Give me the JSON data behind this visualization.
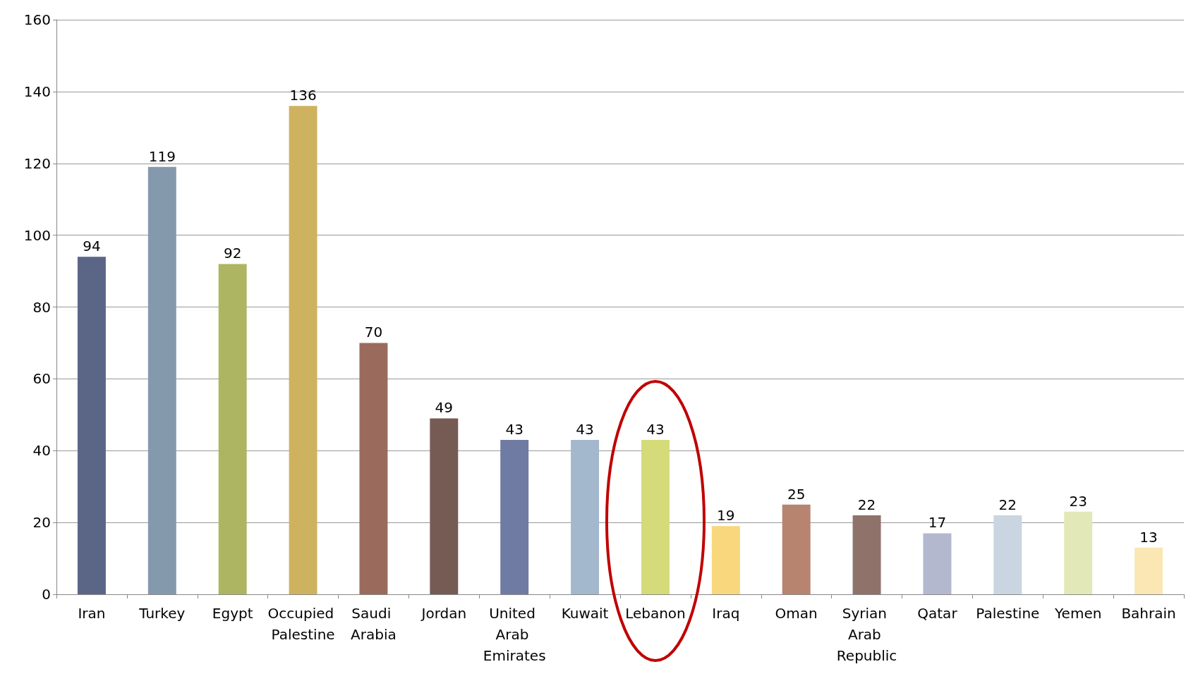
{
  "chart_data": {
    "type": "bar",
    "categories": [
      "Iran",
      "Turkey",
      "Egypt",
      "Occupied Palestine",
      "Saudi Arabia",
      "Jordan",
      "United Arab Emirates",
      "Kuwait",
      "Lebanon",
      "Iraq",
      "Oman",
      "Syrian Arab Republic",
      "Qatar",
      "Palestine",
      "Yemen",
      "Bahrain"
    ],
    "values": [
      94,
      119,
      92,
      136,
      70,
      49,
      43,
      43,
      43,
      19,
      25,
      22,
      17,
      22,
      23,
      13
    ],
    "colors": [
      "#5b6586",
      "#8499ac",
      "#adb563",
      "#cfb260",
      "#9a6b5c",
      "#765b55",
      "#6f7ba3",
      "#a3b7cd",
      "#d4db78",
      "#f9d77c",
      "#b7846f",
      "#8f726a",
      "#b3b8cf",
      "#c9d5e0",
      "#e3e8b9",
      "#fbe7b4"
    ],
    "ylim": [
      0,
      160
    ],
    "yticks": [
      0,
      20,
      40,
      60,
      80,
      100,
      120,
      140,
      160
    ],
    "grid": "y",
    "data_labels": true
  }
}
